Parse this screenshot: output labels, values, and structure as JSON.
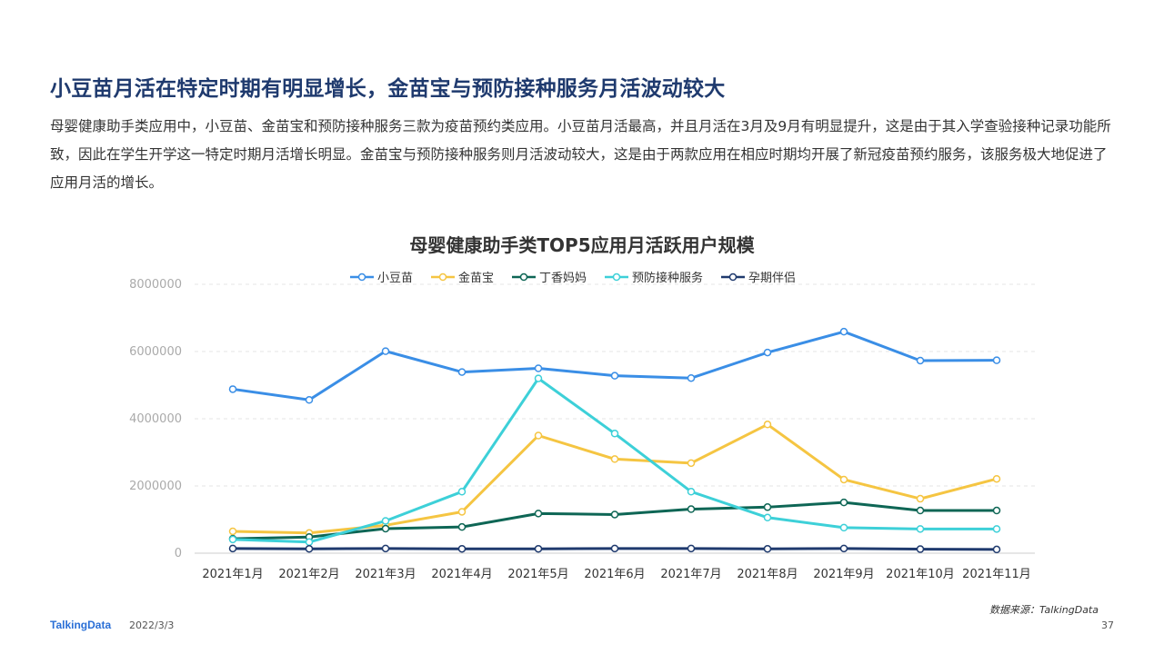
{
  "header": {
    "title": "小豆苗月活在特定时期有明显增长，金苗宝与预防接种服务月活波动较大",
    "description": "母婴健康助手类应用中，小豆苗、金苗宝和预防接种服务三款为疫苗预约类应用。小豆苗月活最高，并且月活在3月及9月有明显提升，这是由于其入学查验接种记录功能所致，因此在学生开学这一特定时期月活增长明显。金苗宝与预防接种服务则月活波动较大，这是由于两款应用在相应时期均开展了新冠疫苗预约服务，该服务极大地促进了应用月活的增长。"
  },
  "chart_data": {
    "type": "line",
    "title": "母婴健康助手类TOP5应用月活跃用户规模",
    "categories": [
      "2021年1月",
      "2021年2月",
      "2021年3月",
      "2021年4月",
      "2021年5月",
      "2021年6月",
      "2021年7月",
      "2021年8月",
      "2021年9月",
      "2021年10月",
      "2021年11月"
    ],
    "ylim": [
      0,
      8000000
    ],
    "yticks": [
      "0",
      "2000000",
      "4000000",
      "6000000",
      "8000000"
    ],
    "grid": true,
    "legend_position": "top-center",
    "series": [
      {
        "name": "小豆苗",
        "color": "#3a8ee6",
        "values": [
          4880000,
          4560000,
          6010000,
          5390000,
          5500000,
          5280000,
          5210000,
          5970000,
          6590000,
          5730000,
          5740000
        ]
      },
      {
        "name": "金苗宝",
        "color": "#f5c542",
        "values": [
          650000,
          600000,
          830000,
          1230000,
          3500000,
          2800000,
          2680000,
          3830000,
          2190000,
          1620000,
          2210000
        ]
      },
      {
        "name": "丁香妈妈",
        "color": "#0e6655",
        "values": [
          430000,
          480000,
          730000,
          780000,
          1180000,
          1150000,
          1310000,
          1370000,
          1510000,
          1270000,
          1270000
        ]
      },
      {
        "name": "预防接种服务",
        "color": "#3dd0d8",
        "values": [
          410000,
          330000,
          960000,
          1830000,
          5200000,
          3560000,
          1830000,
          1060000,
          760000,
          720000,
          720000
        ]
      },
      {
        "name": "孕期伴侣",
        "color": "#1f3a6e",
        "values": [
          140000,
          130000,
          140000,
          130000,
          130000,
          140000,
          140000,
          130000,
          140000,
          120000,
          110000
        ]
      }
    ]
  },
  "footer": {
    "source": "数据来源：TalkingData",
    "logo": "TalkingData",
    "date": "2022/3/3",
    "page": "37"
  }
}
